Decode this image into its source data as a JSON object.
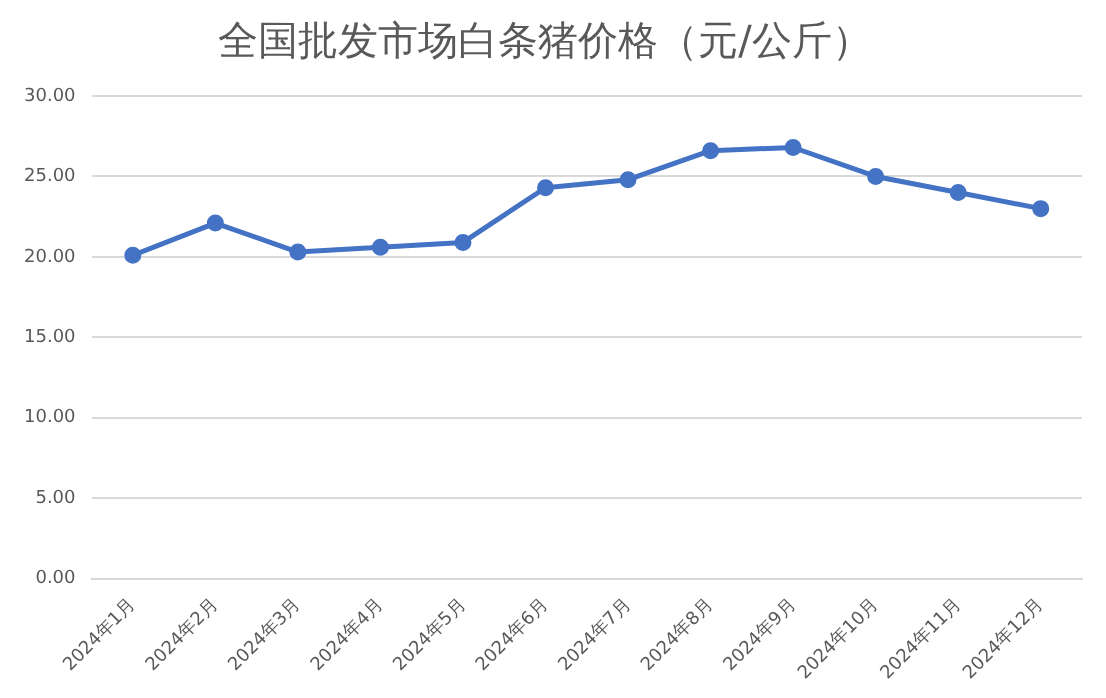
{
  "chart_data": {
    "type": "line",
    "title": "全国批发市场白条猪价格（元/公斤）",
    "categories": [
      "2024年1月",
      "2024年2月",
      "2024年3月",
      "2024年4月",
      "2024年5月",
      "2024年6月",
      "2024年7月",
      "2024年8月",
      "2024年9月",
      "2024年10月",
      "2024年11月",
      "2024年12月"
    ],
    "series": [
      {
        "color": "#4472c4",
        "values": [
          20.1,
          22.1,
          20.3,
          20.6,
          20.9,
          24.3,
          24.8,
          26.6,
          26.8,
          25.0,
          24.0,
          23.0
        ]
      }
    ],
    "ylim": [
      0,
      30
    ],
    "yticks": [
      {
        "value": 0,
        "label": "0.00"
      },
      {
        "value": 5,
        "label": "5.00"
      },
      {
        "value": 10,
        "label": "10.00"
      },
      {
        "value": 15,
        "label": "15.00"
      },
      {
        "value": 20,
        "label": "20.00"
      },
      {
        "value": 25,
        "label": "25.00"
      },
      {
        "value": 30,
        "label": "30.00"
      }
    ],
    "grid": "y",
    "legend": false,
    "marker": "circle",
    "line_style": "solid"
  }
}
